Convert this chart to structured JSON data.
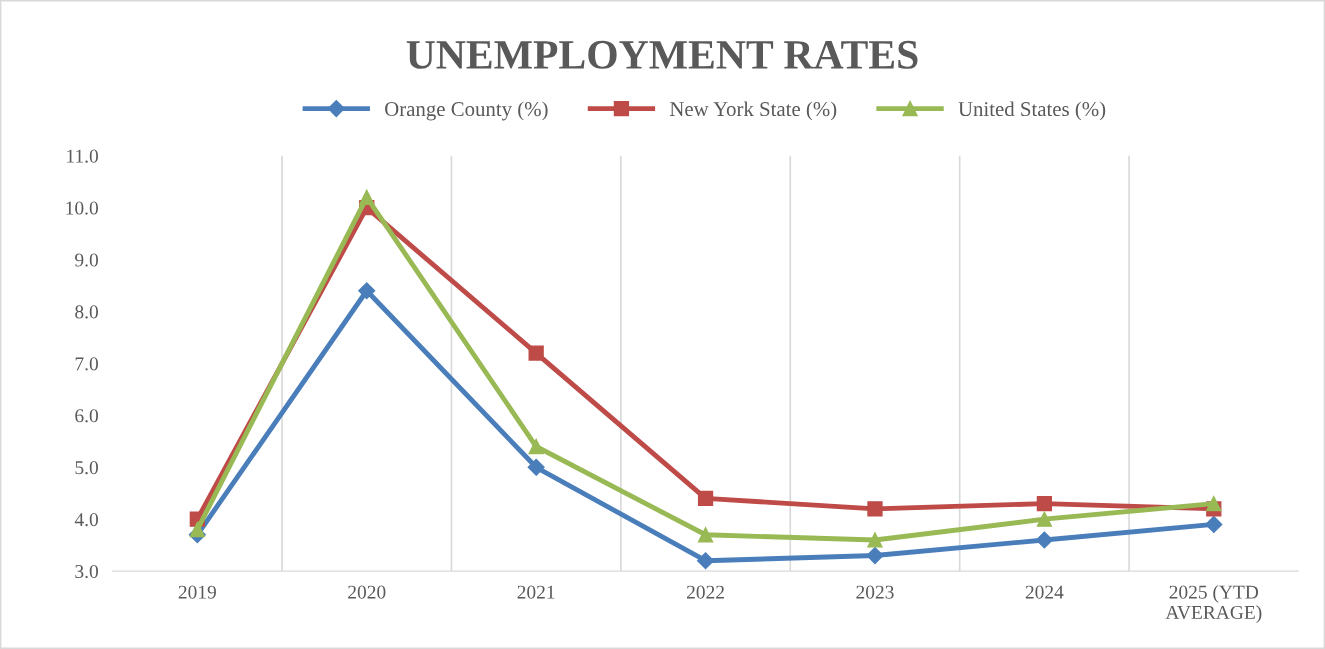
{
  "chart_data": {
    "type": "line",
    "title": "UNEMPLOYMENT RATES",
    "categories": [
      "2019",
      "2020",
      "2021",
      "2022",
      "2023",
      "2024",
      "2025 (YTD\nAVERAGE)"
    ],
    "series": [
      {
        "name": "Orange County (%)",
        "color": "#4a7ebb",
        "marker": "diamond",
        "values": [
          3.7,
          8.4,
          5.0,
          3.2,
          3.3,
          3.6,
          3.9
        ]
      },
      {
        "name": "New York State (%)",
        "color": "#be4b48",
        "marker": "square",
        "values": [
          4.0,
          10.0,
          7.2,
          4.4,
          4.2,
          4.3,
          4.2
        ]
      },
      {
        "name": "United States (%)",
        "color": "#98b954",
        "marker": "triangle",
        "values": [
          3.8,
          10.2,
          5.4,
          3.7,
          3.6,
          4.0,
          4.3
        ]
      }
    ],
    "ylim": [
      3.0,
      11.0
    ],
    "yticks": [
      {
        "value": 3,
        "label": "3.0"
      },
      {
        "value": 4,
        "label": "4.0"
      },
      {
        "value": 5,
        "label": "5.0"
      },
      {
        "value": 6,
        "label": "6.0"
      },
      {
        "value": 7,
        "label": "7.0"
      },
      {
        "value": 8,
        "label": "8.0"
      },
      {
        "value": 9,
        "label": "9.0"
      },
      {
        "value": 10,
        "label": "10.0"
      },
      {
        "value": 11,
        "label": "11.0"
      }
    ],
    "grid": "x",
    "legend": "top",
    "line_style": "solid"
  }
}
